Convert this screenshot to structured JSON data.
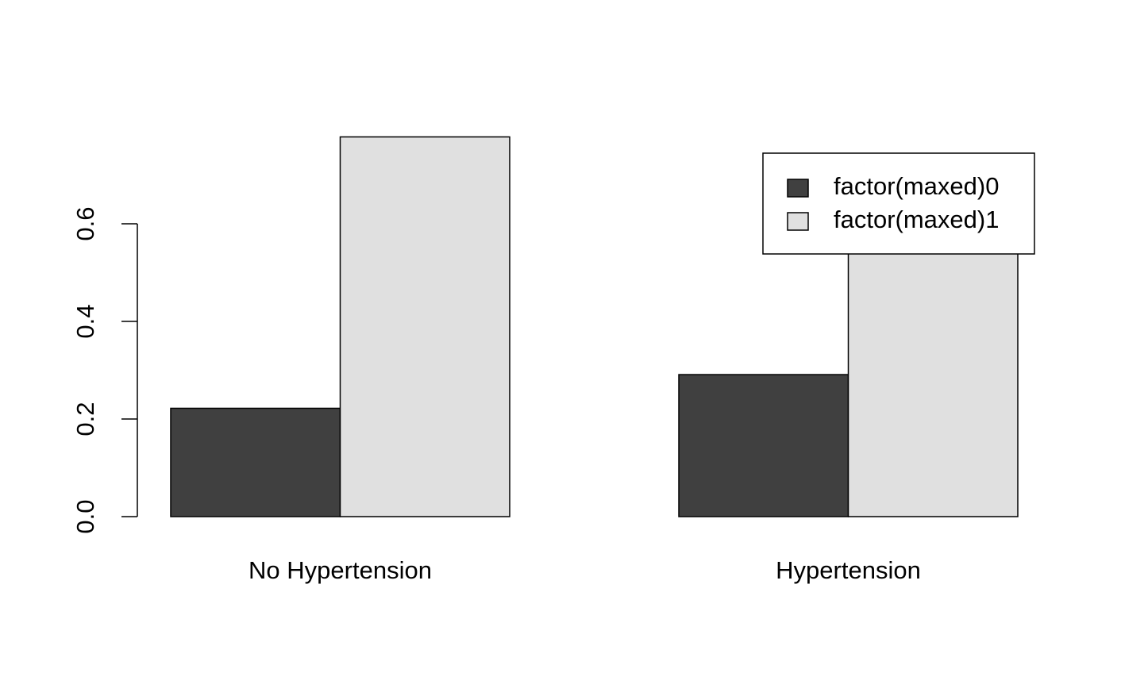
{
  "chart_data": {
    "type": "bar",
    "categories": [
      "No Hypertension",
      "Hypertension"
    ],
    "series": [
      {
        "name": "factor(maxed)0",
        "color": "#404040",
        "values": [
          0.222,
          0.291
        ]
      },
      {
        "name": "factor(maxed)1",
        "color": "#e0e0e0",
        "values": [
          0.778,
          0.709
        ]
      }
    ],
    "ylim": [
      0,
      0.8
    ],
    "yticks": [
      {
        "value": 0,
        "label": "0.0"
      },
      0.2,
      0.4,
      0.6
    ],
    "legend": "top-right"
  }
}
